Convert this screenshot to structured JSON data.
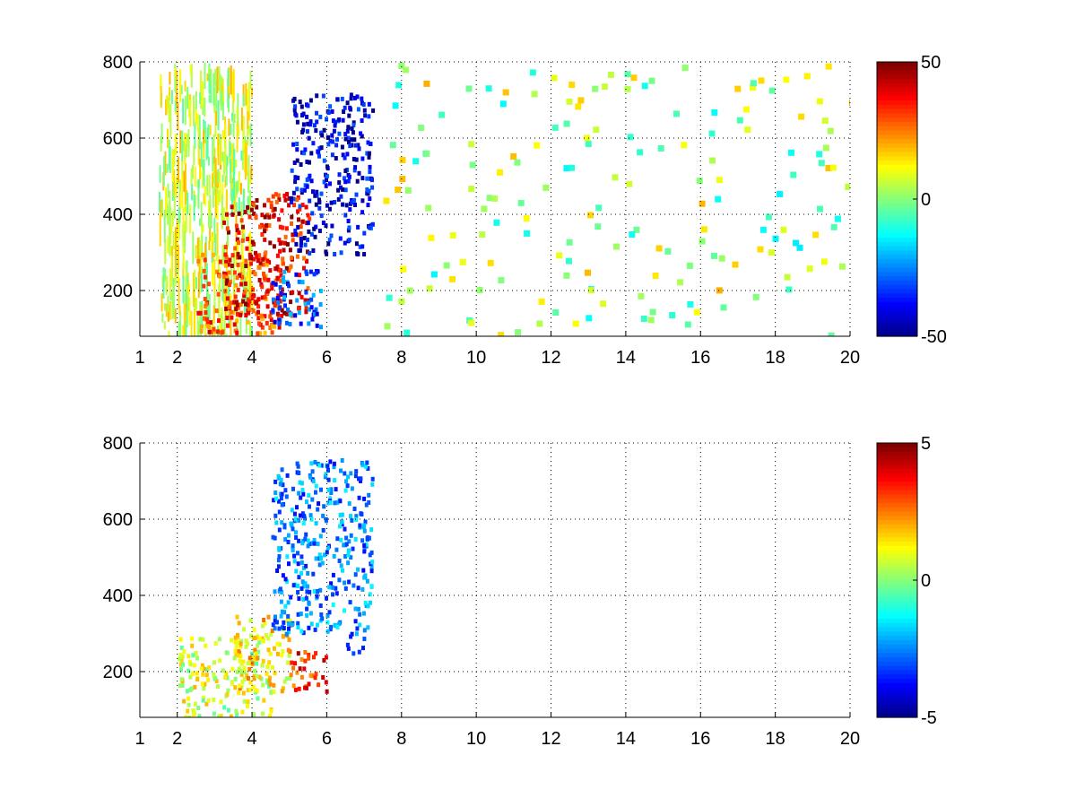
{
  "chart_data": [
    {
      "type": "heatmap",
      "title": "",
      "xlabel": "",
      "ylabel": "",
      "xlim": [
        1,
        20
      ],
      "ylim": [
        80,
        800
      ],
      "x_ticks": [
        1,
        2,
        4,
        6,
        8,
        10,
        12,
        14,
        16,
        18,
        20
      ],
      "x_tick_labels": [
        "1",
        "2",
        "4",
        "6",
        "8",
        "10",
        "12",
        "14",
        "16",
        "18",
        "20"
      ],
      "y_ticks": [
        200,
        400,
        600,
        800
      ],
      "y_tick_labels": [
        "200",
        "400",
        "600",
        "800"
      ],
      "grid": true,
      "colormap": "jet",
      "colorbar": {
        "range": [
          -50,
          50
        ],
        "ticks": [
          50,
          0,
          -50
        ],
        "tick_labels": [
          "50",
          "0",
          "-50"
        ]
      },
      "regions": [
        {
          "x_range": [
            1.5,
            4.0
          ],
          "y_range": [
            80,
            800
          ],
          "value": 8,
          "note": "scattered vertical streaks"
        },
        {
          "x_range": [
            2.5,
            4.8
          ],
          "y_range": [
            90,
            300
          ],
          "value": 30
        },
        {
          "x_range": [
            3.2,
            5.5
          ],
          "y_range": [
            130,
            460
          ],
          "value": 38
        },
        {
          "x_range": [
            5.0,
            7.2
          ],
          "y_range": [
            300,
            720
          ],
          "value": -40
        },
        {
          "x_range": [
            4.5,
            5.8
          ],
          "y_range": [
            100,
            260
          ],
          "value": -30
        },
        {
          "x_range": [
            7.5,
            20.0
          ],
          "y_range": [
            80,
            800
          ],
          "value": 3,
          "note": "sparse speckle"
        }
      ]
    },
    {
      "type": "heatmap",
      "title": "",
      "xlabel": "",
      "ylabel": "",
      "xlim": [
        1,
        20
      ],
      "ylim": [
        80,
        800
      ],
      "x_ticks": [
        1,
        2,
        4,
        6,
        8,
        10,
        12,
        14,
        16,
        18,
        20
      ],
      "x_tick_labels": [
        "1",
        "2",
        "4",
        "6",
        "8",
        "10",
        "12",
        "14",
        "16",
        "18",
        "20"
      ],
      "y_ticks": [
        200,
        400,
        600,
        800
      ],
      "y_tick_labels": [
        "200",
        "400",
        "600",
        "800"
      ],
      "grid": true,
      "colormap": "jet",
      "colorbar": {
        "range": [
          -5,
          5
        ],
        "ticks": [
          5,
          0,
          -5
        ],
        "tick_labels": [
          "5",
          "0",
          "-5"
        ]
      },
      "regions": [
        {
          "x_range": [
            2.0,
            4.5
          ],
          "y_range": [
            80,
            300
          ],
          "value": 0.8
        },
        {
          "x_range": [
            3.5,
            5.0
          ],
          "y_range": [
            150,
            350
          ],
          "value": 1.5
        },
        {
          "x_range": [
            4.5,
            7.2
          ],
          "y_range": [
            300,
            760
          ],
          "value": -2.5
        },
        {
          "x_range": [
            5.0,
            6.0
          ],
          "y_range": [
            150,
            260
          ],
          "value": 3.5
        },
        {
          "x_range": [
            6.5,
            7.0
          ],
          "y_range": [
            250,
            300
          ],
          "value": -4
        }
      ]
    }
  ]
}
